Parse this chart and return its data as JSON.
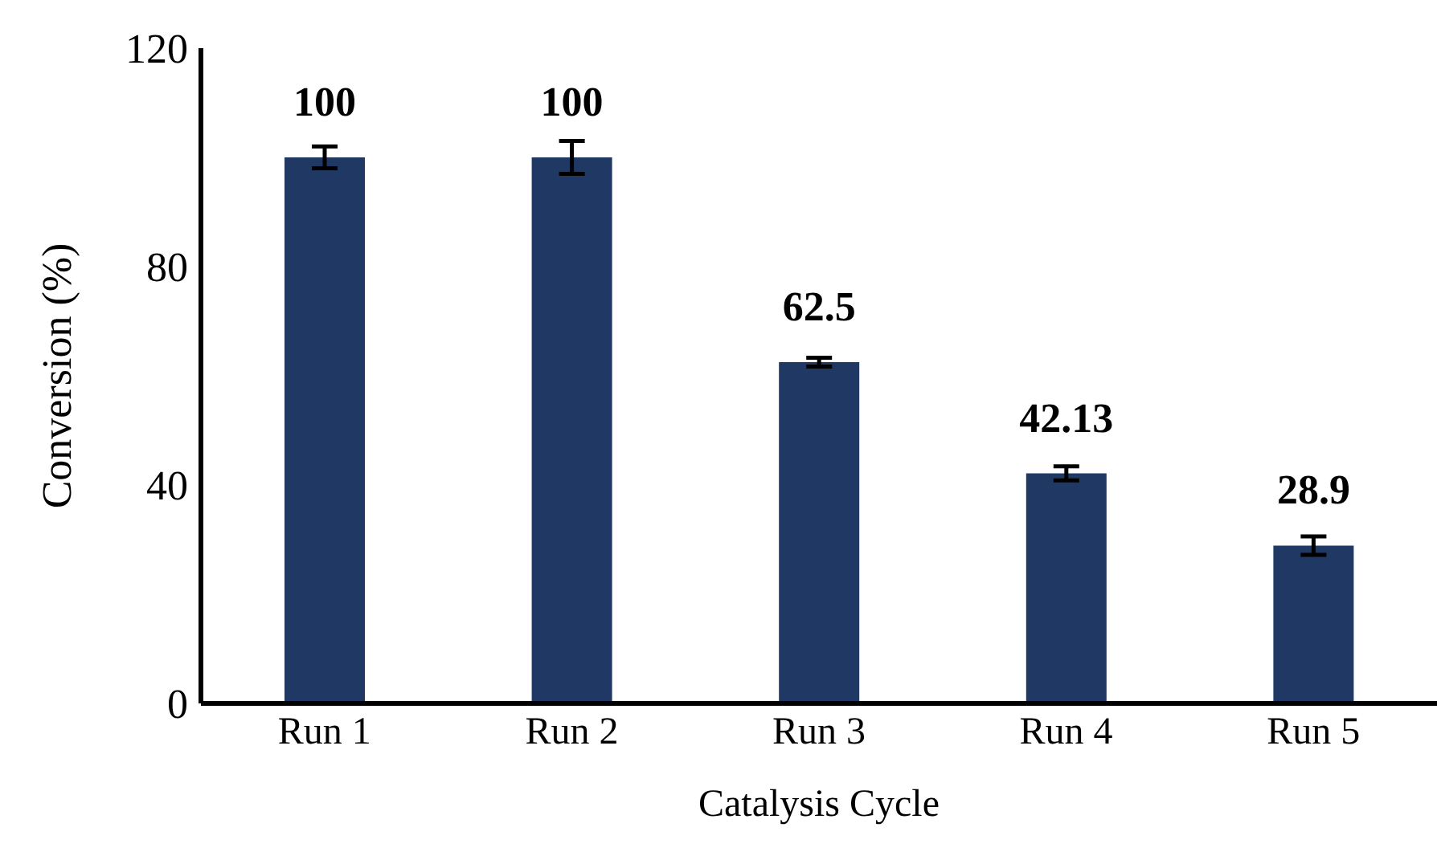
{
  "chart_data": {
    "type": "bar",
    "xlabel": "Catalysis Cycle",
    "ylabel": "Conversion (%)",
    "categories": [
      "Run 1",
      "Run 2",
      "Run 3",
      "Run 4",
      "Run 5"
    ],
    "values": [
      100,
      100,
      62.5,
      42.13,
      28.9
    ],
    "errors": [
      2,
      3,
      0.8,
      1.3,
      1.7
    ],
    "color": "#203864",
    "ylim": [
      0,
      120
    ],
    "yticks": [
      0,
      40,
      80,
      120
    ],
    "data_labels": true,
    "grid": false
  }
}
